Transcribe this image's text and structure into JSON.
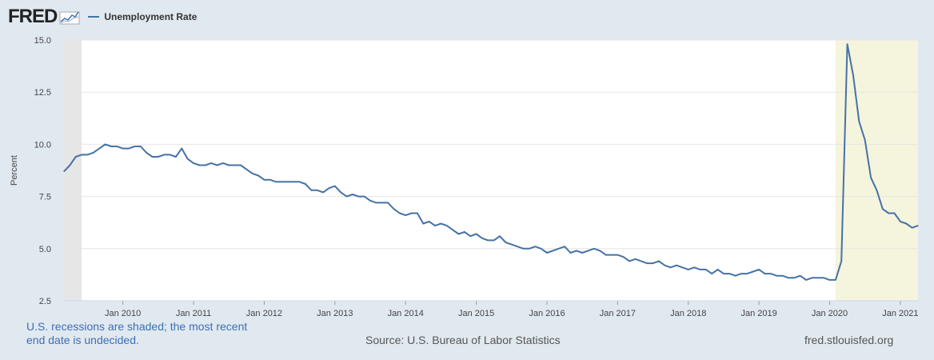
{
  "header": {
    "logo_text": "FRED",
    "legend_label": "Unemployment Rate"
  },
  "footer": {
    "recession_note_line1": "U.S. recessions are shaded; the most recent",
    "recession_note_line2": "end date is undecided.",
    "source": "Source: U.S. Bureau of Labor Statistics",
    "site": "fred.stlouisfed.org"
  },
  "colors": {
    "line": "#4572a7",
    "recession_shade_past": "#e6e6e6",
    "recession_shade_current": "#f5f4dc",
    "plot_background": "#ffffff",
    "page_background": "#e1e9f0"
  },
  "chart_data": {
    "type": "line",
    "title": "",
    "xlabel": "",
    "ylabel": "Percent",
    "ylim": [
      2.5,
      15.0
    ],
    "y_ticks": [
      "2.5",
      "5.0",
      "7.5",
      "10.0",
      "12.5",
      "15.0"
    ],
    "x_ticks": [
      "Jan 2010",
      "Jan 2011",
      "Jan 2012",
      "Jan 2013",
      "Jan 2014",
      "Jan 2015",
      "Jan 2016",
      "Jan 2017",
      "Jan 2018",
      "Jan 2019",
      "Jan 2020",
      "Jan 2021"
    ],
    "x_start": "2009-03",
    "x_end": "2021-04",
    "recessions": [
      {
        "start": "2009-03",
        "end": "2009-06"
      },
      {
        "start": "2020-02",
        "end": "2021-04"
      }
    ],
    "series": [
      {
        "name": "Unemployment Rate",
        "x": [
          "2009-03",
          "2009-04",
          "2009-05",
          "2009-06",
          "2009-07",
          "2009-08",
          "2009-09",
          "2009-10",
          "2009-11",
          "2009-12",
          "2010-01",
          "2010-02",
          "2010-03",
          "2010-04",
          "2010-05",
          "2010-06",
          "2010-07",
          "2010-08",
          "2010-09",
          "2010-10",
          "2010-11",
          "2010-12",
          "2011-01",
          "2011-02",
          "2011-03",
          "2011-04",
          "2011-05",
          "2011-06",
          "2011-07",
          "2011-08",
          "2011-09",
          "2011-10",
          "2011-11",
          "2011-12",
          "2012-01",
          "2012-02",
          "2012-03",
          "2012-04",
          "2012-05",
          "2012-06",
          "2012-07",
          "2012-08",
          "2012-09",
          "2012-10",
          "2012-11",
          "2012-12",
          "2013-01",
          "2013-02",
          "2013-03",
          "2013-04",
          "2013-05",
          "2013-06",
          "2013-07",
          "2013-08",
          "2013-09",
          "2013-10",
          "2013-11",
          "2013-12",
          "2014-01",
          "2014-02",
          "2014-03",
          "2014-04",
          "2014-05",
          "2014-06",
          "2014-07",
          "2014-08",
          "2014-09",
          "2014-10",
          "2014-11",
          "2014-12",
          "2015-01",
          "2015-02",
          "2015-03",
          "2015-04",
          "2015-05",
          "2015-06",
          "2015-07",
          "2015-08",
          "2015-09",
          "2015-10",
          "2015-11",
          "2015-12",
          "2016-01",
          "2016-02",
          "2016-03",
          "2016-04",
          "2016-05",
          "2016-06",
          "2016-07",
          "2016-08",
          "2016-09",
          "2016-10",
          "2016-11",
          "2016-12",
          "2017-01",
          "2017-02",
          "2017-03",
          "2017-04",
          "2017-05",
          "2017-06",
          "2017-07",
          "2017-08",
          "2017-09",
          "2017-10",
          "2017-11",
          "2017-12",
          "2018-01",
          "2018-02",
          "2018-03",
          "2018-04",
          "2018-05",
          "2018-06",
          "2018-07",
          "2018-08",
          "2018-09",
          "2018-10",
          "2018-11",
          "2018-12",
          "2019-01",
          "2019-02",
          "2019-03",
          "2019-04",
          "2019-05",
          "2019-06",
          "2019-07",
          "2019-08",
          "2019-09",
          "2019-10",
          "2019-11",
          "2019-12",
          "2020-01",
          "2020-02",
          "2020-03",
          "2020-04",
          "2020-05",
          "2020-06",
          "2020-07",
          "2020-08",
          "2020-09",
          "2020-10",
          "2020-11",
          "2020-12",
          "2021-01",
          "2021-02",
          "2021-03",
          "2021-04"
        ],
        "values": [
          8.7,
          9.0,
          9.4,
          9.5,
          9.5,
          9.6,
          9.8,
          10.0,
          9.9,
          9.9,
          9.8,
          9.8,
          9.9,
          9.9,
          9.6,
          9.4,
          9.4,
          9.5,
          9.5,
          9.4,
          9.8,
          9.3,
          9.1,
          9.0,
          9.0,
          9.1,
          9.0,
          9.1,
          9.0,
          9.0,
          9.0,
          8.8,
          8.6,
          8.5,
          8.3,
          8.3,
          8.2,
          8.2,
          8.2,
          8.2,
          8.2,
          8.1,
          7.8,
          7.8,
          7.7,
          7.9,
          8.0,
          7.7,
          7.5,
          7.6,
          7.5,
          7.5,
          7.3,
          7.2,
          7.2,
          7.2,
          6.9,
          6.7,
          6.6,
          6.7,
          6.7,
          6.2,
          6.3,
          6.1,
          6.2,
          6.1,
          5.9,
          5.7,
          5.8,
          5.6,
          5.7,
          5.5,
          5.4,
          5.4,
          5.6,
          5.3,
          5.2,
          5.1,
          5.0,
          5.0,
          5.1,
          5.0,
          4.8,
          4.9,
          5.0,
          5.1,
          4.8,
          4.9,
          4.8,
          4.9,
          5.0,
          4.9,
          4.7,
          4.7,
          4.7,
          4.6,
          4.4,
          4.5,
          4.4,
          4.3,
          4.3,
          4.4,
          4.2,
          4.1,
          4.2,
          4.1,
          4.0,
          4.1,
          4.0,
          4.0,
          3.8,
          4.0,
          3.8,
          3.8,
          3.7,
          3.8,
          3.8,
          3.9,
          4.0,
          3.8,
          3.8,
          3.7,
          3.7,
          3.6,
          3.6,
          3.7,
          3.5,
          3.6,
          3.6,
          3.6,
          3.5,
          3.5,
          4.4,
          14.8,
          13.3,
          11.1,
          10.2,
          8.4,
          7.8,
          6.9,
          6.7,
          6.7,
          6.3,
          6.2,
          6.0,
          6.1
        ]
      }
    ]
  }
}
